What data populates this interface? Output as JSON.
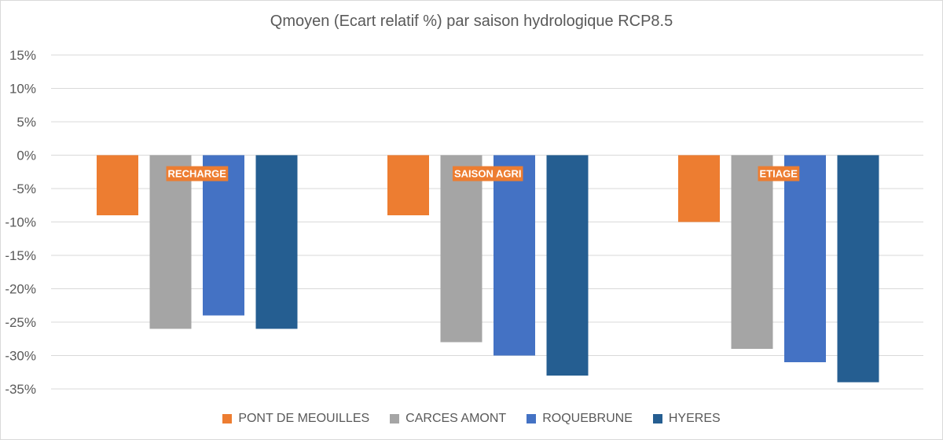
{
  "chart_data": {
    "type": "bar",
    "title": "Qmoyen  (Ecart relatif %)  par saison hydrologique  RCP8.5",
    "xlabel": "",
    "ylabel": "",
    "ylim": [
      -35,
      15
    ],
    "yticks": [
      15,
      10,
      5,
      0,
      -5,
      -10,
      -15,
      -20,
      -25,
      -30,
      -35
    ],
    "ytick_labels": [
      "15%",
      "10%",
      "5%",
      "0%",
      "-5%",
      "-10%",
      "-15%",
      "-20%",
      "-25%",
      "-30%",
      "-35%"
    ],
    "grid": true,
    "legend_position": "bottom",
    "categories": [
      "RECHARGE",
      "SAISON AGRI",
      "ETIAGE"
    ],
    "category_label_color": "#ED7D31",
    "series": [
      {
        "name": "PONT DE MEOUILLES",
        "color": "#ED7D31",
        "values": [
          -9,
          -9,
          -10
        ]
      },
      {
        "name": "CARCES AMONT",
        "color": "#A5A5A5",
        "values": [
          -26,
          -28,
          -29
        ]
      },
      {
        "name": "ROQUEBRUNE",
        "color": "#4472C4",
        "values": [
          -24,
          -30,
          -31
        ]
      },
      {
        "name": "HYERES",
        "color": "#255E91",
        "values": [
          -26,
          -33,
          -34
        ]
      }
    ]
  }
}
